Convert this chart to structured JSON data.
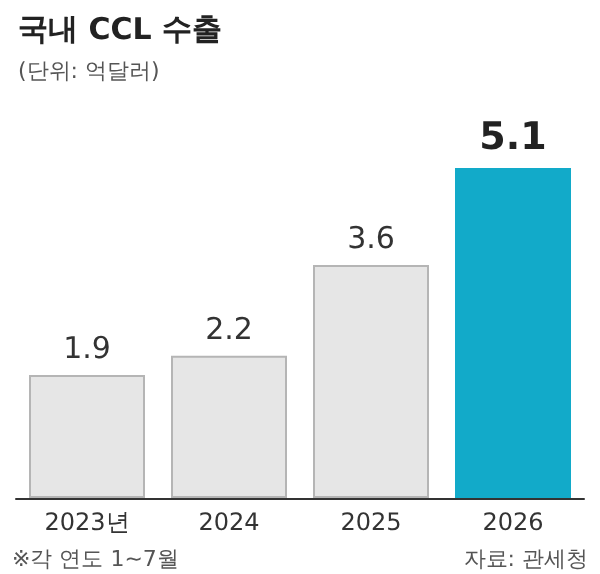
{
  "chart_data": {
    "type": "bar",
    "title": "국내 CCL 수출",
    "subtitle": "(단위: 억달러)",
    "categories": [
      "2023년",
      "2024",
      "2025",
      "2026"
    ],
    "values": [
      1.9,
      2.2,
      3.6,
      5.1
    ],
    "colors": [
      "#e6e6e6",
      "#e6e6e6",
      "#e6e6e6",
      "#12aac9"
    ],
    "data_labels": true,
    "annotations": [
      "※각 연도 1~7월",
      "자료: 관세청"
    ]
  }
}
